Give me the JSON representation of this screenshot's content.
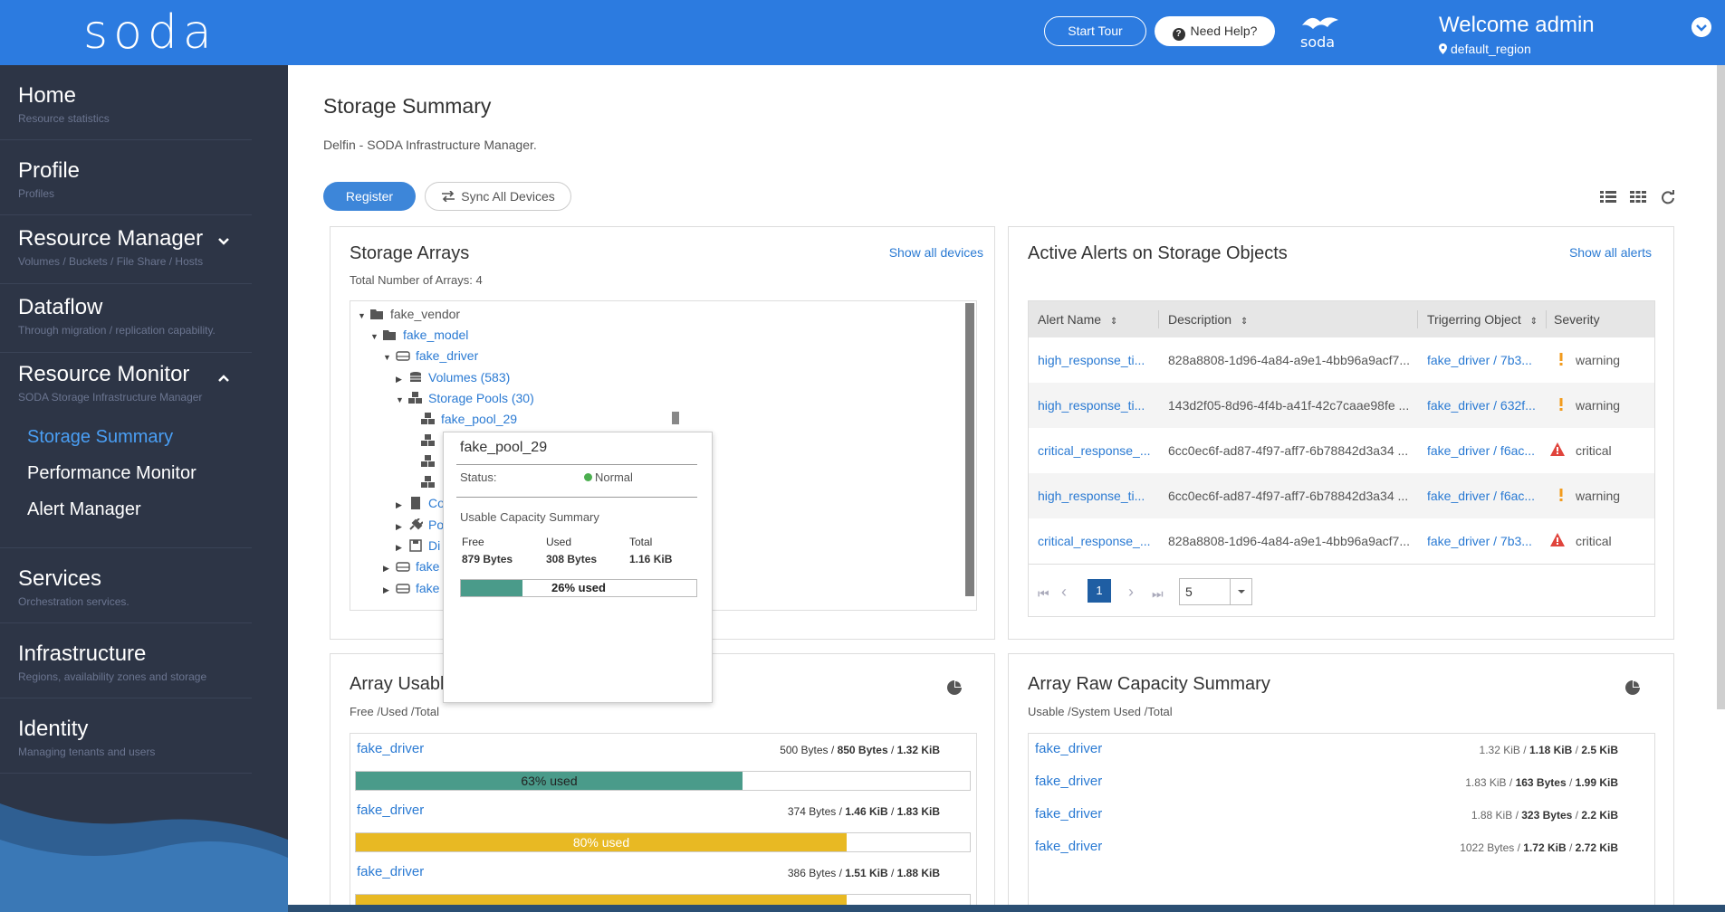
{
  "header": {
    "logo": "soda",
    "start_tour": "Start Tour",
    "need_help": "Need Help?",
    "welcome": "Welcome admin",
    "region": "default_region",
    "brand_mini": "soda"
  },
  "sidebar": {
    "items": [
      {
        "title": "Home",
        "sub": "Resource statistics"
      },
      {
        "title": "Profile",
        "sub": "Profiles"
      },
      {
        "title": "Resource Manager",
        "sub": "Volumes / Buckets / File Share / Hosts"
      },
      {
        "title": "Dataflow",
        "sub": "Through migration / replication capability."
      },
      {
        "title": "Resource Monitor",
        "sub": "SODA Storage Infrastructure Manager"
      },
      {
        "title": "Services",
        "sub": "Orchestration services."
      },
      {
        "title": "Infrastructure",
        "sub": "Regions, availability zones and storage"
      },
      {
        "title": "Identity",
        "sub": "Managing tenants and users"
      }
    ],
    "subitems": [
      "Storage Summary",
      "Performance Monitor",
      "Alert Manager"
    ]
  },
  "main": {
    "title": "Storage Summary",
    "subtitle": "Delfin - SODA Infrastructure Manager.",
    "register": "Register",
    "sync": "Sync All Devices"
  },
  "arrays": {
    "title": "Storage Arrays",
    "total": "Total Number of Arrays: 4",
    "show_all": "Show all devices",
    "tree": {
      "vendor": "fake_vendor",
      "model": "fake_model",
      "driver": "fake_driver",
      "volumes": "Volumes (583)",
      "pools": "Storage Pools (30)",
      "pool": "fake_pool_29",
      "co": "Co",
      "po": "Po",
      "di": "Di",
      "fake1": "fake",
      "fake2": "fake"
    }
  },
  "tooltip": {
    "title": "fake_pool_29",
    "status_label": "Status:",
    "status_value": "Normal",
    "status_color": "#4caf50",
    "summary_label": "Usable Capacity Summary",
    "free_label": "Free",
    "used_label": "Used",
    "total_label": "Total",
    "free": "879 Bytes",
    "used": "308 Bytes",
    "total": "1.16 KiB",
    "bar_text": "26% used",
    "used_fraction": 0.26
  },
  "alerts": {
    "title": "Active Alerts on Storage Objects",
    "show_all": "Show all alerts",
    "headers": [
      "Alert Name",
      "Description",
      "Trigerring Object",
      "Severity"
    ],
    "rows": [
      {
        "name": "high_response_ti...",
        "desc": "828a8808-1d96-4a84-a9e1-4bb96a9acf7...",
        "obj": "fake_driver / 7b3...",
        "sev": "warning"
      },
      {
        "name": "high_response_ti...",
        "desc": "143d2f05-8d96-4f4b-a41f-42c7caae98fe ...",
        "obj": "fake_driver / 632f...",
        "sev": "warning"
      },
      {
        "name": "critical_response_...",
        "desc": "6cc0ec6f-ad87-4f97-aff7-6b78842d3a34 ...",
        "obj": "fake_driver / f6ac...",
        "sev": "critical"
      },
      {
        "name": "high_response_ti...",
        "desc": "6cc0ec6f-ad87-4f97-aff7-6b78842d3a34 ...",
        "obj": "fake_driver / f6ac...",
        "sev": "warning"
      },
      {
        "name": "critical_response_...",
        "desc": "828a8808-1d96-4a84-a9e1-4bb96a9acf7...",
        "obj": "fake_driver / 7b3...",
        "sev": "critical"
      }
    ],
    "page": "1",
    "page_size": "5"
  },
  "usable": {
    "title": "Array Usabl",
    "sub": "Free /Used /Total",
    "rows": [
      {
        "name": "fake_driver",
        "free": "500 Bytes",
        "used": "850 Bytes",
        "total": "1.32 KiB",
        "bar": "63% used",
        "fraction": 0.63,
        "color": "#4a9b8a"
      },
      {
        "name": "fake_driver",
        "free": "374 Bytes",
        "used": "1.46 KiB",
        "total": "1.83 KiB",
        "bar": "80% used",
        "fraction": 0.8,
        "color": "#e8b923"
      },
      {
        "name": "fake_driver",
        "free": "386 Bytes",
        "used": "1.51 KiB",
        "total": "1.88 KiB",
        "bar": "",
        "fraction": 0.8,
        "color": "#e8b923"
      }
    ]
  },
  "raw": {
    "title": "Array Raw Capacity Summary",
    "sub": "Usable /System Used /Total",
    "rows": [
      {
        "name": "fake_driver",
        "usable": "1.32 KiB",
        "sys": "1.18 KiB",
        "total": "2.5 KiB"
      },
      {
        "name": "fake_driver",
        "usable": "1.83 KiB",
        "sys": "163 Bytes",
        "total": "1.99 KiB"
      },
      {
        "name": "fake_driver",
        "usable": "1.88 KiB",
        "sys": "323 Bytes",
        "total": "2.2 KiB"
      },
      {
        "name": "fake_driver",
        "usable": "1022 Bytes",
        "sys": "1.72 KiB",
        "total": "2.72 KiB"
      }
    ]
  }
}
